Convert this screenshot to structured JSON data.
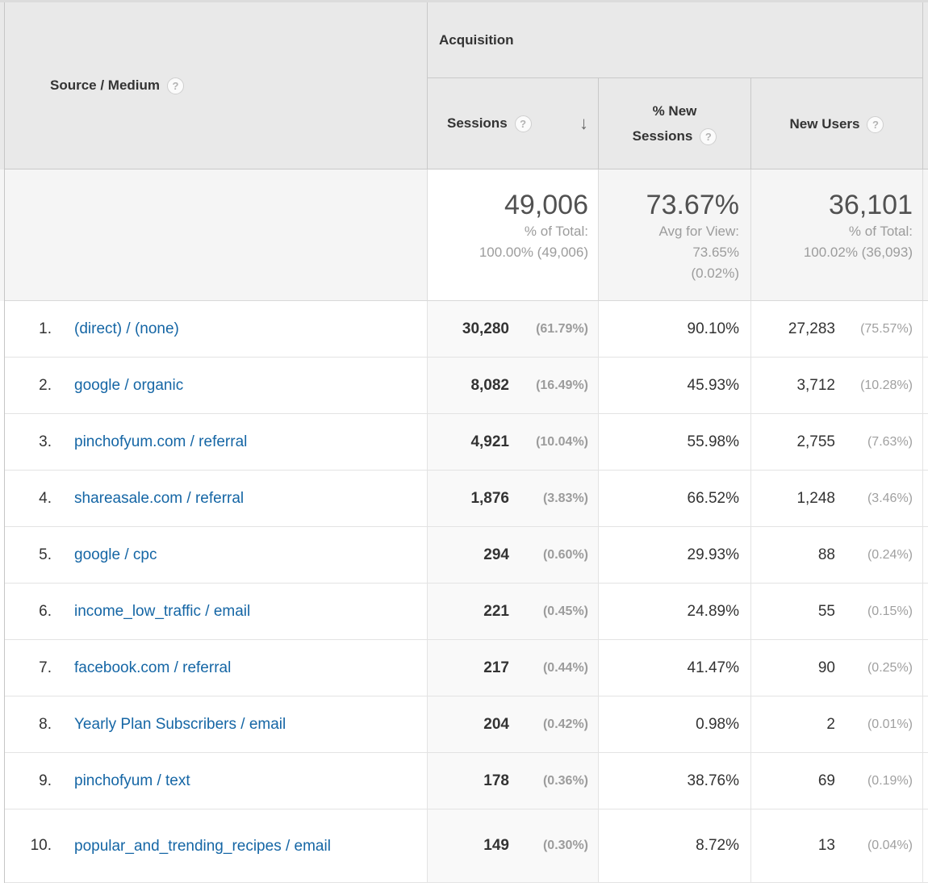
{
  "table": {
    "dimension_header": {
      "label": "Source / Medium",
      "help_icon": "?"
    },
    "group_header": {
      "label": "Acquisition"
    },
    "metric_headers": {
      "sessions": {
        "label": "Sessions",
        "help_icon": "?",
        "sort_icon": "↓",
        "sorted": "descending"
      },
      "pct_new_sessions": {
        "label": "% New Sessions",
        "help_icon": "?"
      },
      "new_users": {
        "label": "New Users",
        "help_icon": "?"
      }
    },
    "summary": {
      "sessions": {
        "value": "49,006",
        "caption_lines": [
          "% of Total:",
          "100.00% (49,006)"
        ]
      },
      "pct_new_sessions": {
        "value": "73.67%",
        "caption_lines": [
          "Avg for View:",
          "73.65%",
          "(0.02%)"
        ]
      },
      "new_users": {
        "value": "36,101",
        "caption_lines": [
          "% of Total:",
          "100.02% (36,093)"
        ]
      }
    },
    "rows": [
      {
        "rank": "1.",
        "source_medium": "(direct) / (none)",
        "sessions": "30,280",
        "sessions_pct": "(61.79%)",
        "pct_new_sessions": "90.10%",
        "new_users": "27,283",
        "new_users_pct": "(75.57%)"
      },
      {
        "rank": "2.",
        "source_medium": "google / organic",
        "sessions": "8,082",
        "sessions_pct": "(16.49%)",
        "pct_new_sessions": "45.93%",
        "new_users": "3,712",
        "new_users_pct": "(10.28%)"
      },
      {
        "rank": "3.",
        "source_medium": "pinchofyum.com / referral",
        "sessions": "4,921",
        "sessions_pct": "(10.04%)",
        "pct_new_sessions": "55.98%",
        "new_users": "2,755",
        "new_users_pct": "(7.63%)"
      },
      {
        "rank": "4.",
        "source_medium": "shareasale.com / referral",
        "sessions": "1,876",
        "sessions_pct": "(3.83%)",
        "pct_new_sessions": "66.52%",
        "new_users": "1,248",
        "new_users_pct": "(3.46%)"
      },
      {
        "rank": "5.",
        "source_medium": "google / cpc",
        "sessions": "294",
        "sessions_pct": "(0.60%)",
        "pct_new_sessions": "29.93%",
        "new_users": "88",
        "new_users_pct": "(0.24%)"
      },
      {
        "rank": "6.",
        "source_medium": "income_low_traffic / email",
        "sessions": "221",
        "sessions_pct": "(0.45%)",
        "pct_new_sessions": "24.89%",
        "new_users": "55",
        "new_users_pct": "(0.15%)"
      },
      {
        "rank": "7.",
        "source_medium": "facebook.com / referral",
        "sessions": "217",
        "sessions_pct": "(0.44%)",
        "pct_new_sessions": "41.47%",
        "new_users": "90",
        "new_users_pct": "(0.25%)"
      },
      {
        "rank": "8.",
        "source_medium": "Yearly Plan Subscribers / email",
        "sessions": "204",
        "sessions_pct": "(0.42%)",
        "pct_new_sessions": "0.98%",
        "new_users": "2",
        "new_users_pct": "(0.01%)"
      },
      {
        "rank": "9.",
        "source_medium": "pinchofyum / text",
        "sessions": "178",
        "sessions_pct": "(0.36%)",
        "pct_new_sessions": "38.76%",
        "new_users": "69",
        "new_users_pct": "(0.19%)"
      },
      {
        "rank": "10.",
        "source_medium": "popular_and_trending_recipes / email",
        "sessions": "149",
        "sessions_pct": "(0.30%)",
        "pct_new_sessions": "8.72%",
        "new_users": "13",
        "new_users_pct": "(0.04%)"
      }
    ]
  },
  "colors": {
    "link_blue": "#1566a5",
    "header_background": "#e9e9e9",
    "sorted_column_body_background": "#f9f9f9",
    "summary_row_background": "#f5f5f5",
    "muted_text": "#9c9c9c"
  }
}
